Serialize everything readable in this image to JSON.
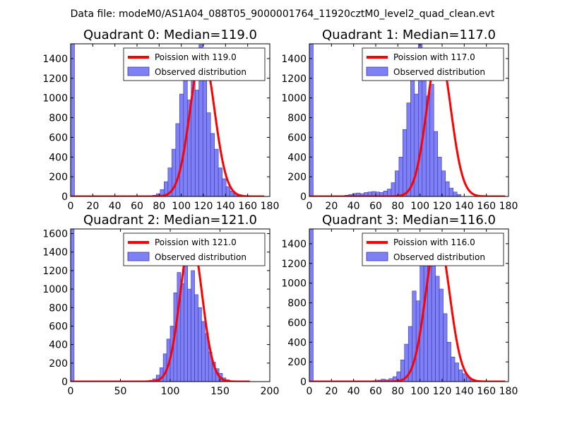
{
  "figure": {
    "suptitle": "Data file: modeM0/AS1A04_088T05_9000001764_11920cztM0_level2_quad_clean.evt"
  },
  "colors": {
    "bar_fill": "#8080f5",
    "bar_edge": "#3535b8",
    "fit_line": "#ff0000",
    "axis": "#000000"
  },
  "chart_data": [
    {
      "type": "bar",
      "title": "Quadrant 0: Median=119.0",
      "xlabel": "",
      "ylabel": "",
      "xlim": [
        0,
        180
      ],
      "ylim": [
        0,
        1550
      ],
      "xticks": [
        0,
        20,
        40,
        60,
        80,
        100,
        120,
        140,
        160,
        180
      ],
      "yticks": [
        0,
        200,
        400,
        600,
        800,
        1000,
        1200,
        1400
      ],
      "bin_width": 3.5,
      "spike": {
        "x": 0,
        "value": 1550
      },
      "bins_start": 60,
      "values": [
        3,
        5,
        8,
        5,
        12,
        28,
        70,
        150,
        290,
        480,
        740,
        1040,
        1260,
        980,
        1320,
        1080,
        1540,
        1300,
        850,
        640,
        480,
        290,
        180,
        100,
        55,
        30,
        18,
        10
      ],
      "series": [
        {
          "name": "Poission with 119.0",
          "type": "line",
          "mean": 119.0,
          "peak": 1470,
          "x_range": [
            0,
            175
          ]
        },
        {
          "name": "Observed distribution",
          "type": "bar"
        }
      ],
      "legend": {
        "placement": "top-right",
        "entries": [
          "Poission with 119.0",
          "Observed distribution"
        ]
      }
    },
    {
      "type": "bar",
      "title": "Quadrant 1: Median=117.0",
      "xlabel": "",
      "ylabel": "",
      "xlim": [
        0,
        180
      ],
      "ylim": [
        0,
        1550
      ],
      "xticks": [
        0,
        20,
        40,
        60,
        80,
        100,
        120,
        140,
        160,
        180
      ],
      "yticks": [
        0,
        200,
        400,
        600,
        800,
        1000,
        1200,
        1400
      ],
      "bin_width": 3.5,
      "spike": {
        "x": 0,
        "value": 1550
      },
      "bins_start": 32,
      "values": [
        12,
        20,
        30,
        35,
        28,
        40,
        45,
        50,
        45,
        40,
        55,
        75,
        140,
        260,
        400,
        680,
        950,
        1340,
        1040,
        1560,
        1460,
        1020,
        1140,
        660,
        400,
        260,
        150,
        85,
        45,
        20
      ],
      "series": [
        {
          "name": "Poission with 117.0",
          "type": "line",
          "mean": 117.0,
          "peak": 1480,
          "x_range": [
            0,
            177
          ]
        },
        {
          "name": "Observed distribution",
          "type": "bar"
        }
      ],
      "legend": {
        "placement": "top-right",
        "entries": [
          "Poission with 117.0",
          "Observed distribution"
        ]
      }
    },
    {
      "type": "bar",
      "title": "Quadrant 2: Median=121.0",
      "xlabel": "",
      "ylabel": "",
      "xlim": [
        0,
        200
      ],
      "ylim": [
        0,
        1650
      ],
      "xticks": [
        0,
        50,
        100,
        150,
        200
      ],
      "yticks": [
        0,
        200,
        400,
        600,
        800,
        1000,
        1200,
        1400,
        1600
      ],
      "bin_width": 3.5,
      "spike": {
        "x": 0,
        "value": 1650
      },
      "bins_start": 72,
      "values": [
        8,
        10,
        15,
        30,
        70,
        150,
        300,
        460,
        600,
        960,
        1180,
        1060,
        1390,
        1000,
        1200,
        940,
        800,
        650,
        520,
        320,
        210,
        140,
        90,
        40,
        20
      ],
      "series": [
        {
          "name": "Poission with 121.0",
          "type": "line",
          "mean": 121.0,
          "peak": 1560,
          "x_range": [
            0,
            180
          ]
        },
        {
          "name": "Observed distribution",
          "type": "bar"
        }
      ],
      "legend": {
        "placement": "top-right",
        "entries": [
          "Poission with 121.0",
          "Observed distribution"
        ]
      }
    },
    {
      "type": "bar",
      "title": "Quadrant 3: Median=116.0",
      "xlabel": "",
      "ylabel": "",
      "xlim": [
        0,
        180
      ],
      "ylim": [
        0,
        1550
      ],
      "xticks": [
        0,
        20,
        40,
        60,
        80,
        100,
        120,
        140,
        160,
        180
      ],
      "yticks": [
        0,
        200,
        400,
        600,
        800,
        1000,
        1200,
        1400
      ],
      "bin_width": 3.5,
      "spike": {
        "x": 0,
        "value": 1550
      },
      "bins_start": 58,
      "values": [
        10,
        15,
        25,
        18,
        30,
        50,
        100,
        220,
        380,
        560,
        920,
        820,
        1180,
        1290,
        1450,
        1310,
        1070,
        940,
        690,
        400,
        250,
        190,
        120,
        80,
        45,
        25
      ],
      "series": [
        {
          "name": "Poission with 116.0",
          "type": "line",
          "mean": 116.0,
          "peak": 1480,
          "x_range": [
            0,
            177
          ]
        },
        {
          "name": "Observed distribution",
          "type": "bar"
        }
      ],
      "legend": {
        "placement": "top-right",
        "entries": [
          "Poission with 116.0",
          "Observed distribution"
        ]
      }
    }
  ]
}
